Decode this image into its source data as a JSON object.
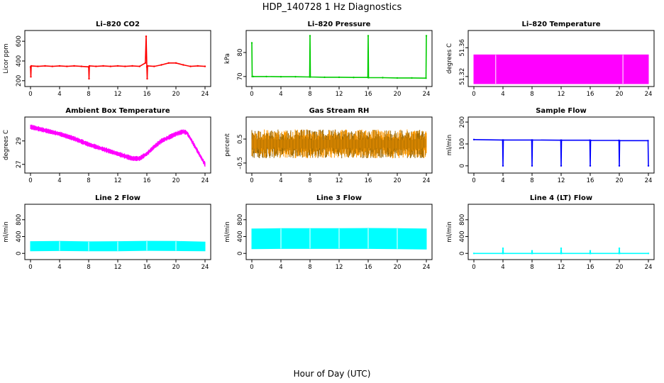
{
  "title": "HDP_140728  1 Hz Diagnostics",
  "xlabel": "Hour of Day (UTC)",
  "chart_data": [
    {
      "type": "line",
      "title": "Li–820 CO2",
      "ylabel": "Licor ppm",
      "color": "#ff0000",
      "xlim": [
        0,
        24
      ],
      "xticks": [
        0,
        4,
        8,
        12,
        16,
        20,
        24
      ],
      "ylim": [
        170,
        680
      ],
      "yticks": [
        200,
        400,
        600
      ],
      "series": [
        {
          "x": [
            0,
            0.05,
            0.1,
            1,
            2,
            3,
            4,
            5,
            6,
            7,
            8,
            8.05,
            8.1,
            9,
            10,
            11,
            12,
            13,
            14,
            15,
            15.8,
            15.9,
            16,
            16.05,
            16.1,
            17,
            18,
            19,
            20,
            21,
            22,
            23,
            24
          ],
          "y": [
            340,
            240,
            350,
            345,
            350,
            345,
            350,
            345,
            350,
            345,
            340,
            220,
            350,
            345,
            350,
            345,
            350,
            345,
            350,
            345,
            380,
            650,
            340,
            220,
            350,
            345,
            360,
            380,
            380,
            360,
            345,
            350,
            345
          ]
        }
      ]
    },
    {
      "type": "line",
      "title": "Li–820 Pressure",
      "ylabel": "kPa",
      "color": "#00cc00",
      "xlim": [
        0,
        24
      ],
      "xticks": [
        0,
        4,
        8,
        12,
        16,
        20,
        24
      ],
      "ylim": [
        67,
        88
      ],
      "yticks": [
        70,
        80
      ],
      "series": [
        {
          "x": [
            0,
            0.05,
            0.2,
            2,
            4,
            6,
            7.95,
            8,
            8.05,
            10,
            12,
            14,
            15.95,
            16,
            16.05,
            18,
            20,
            22,
            23.95,
            24
          ],
          "y": [
            84,
            70,
            70,
            70,
            69.9,
            69.9,
            69.8,
            87,
            69.8,
            69.7,
            69.7,
            69.6,
            69.6,
            87,
            69.5,
            69.5,
            69.4,
            69.4,
            69.3,
            87
          ]
        }
      ]
    },
    {
      "type": "area",
      "title": "Li–820 Temperature",
      "ylabel": "degrees C",
      "color": "#ff00ff",
      "xlim": [
        0,
        24
      ],
      "xticks": [
        0,
        4,
        8,
        12,
        16,
        20,
        24
      ],
      "ylim": [
        51.31,
        51.38
      ],
      "yticks": [
        51.32,
        51.36
      ],
      "series": [
        {
          "name": "",
          "x": [
            0,
            3,
            20.5,
            24
          ],
          "y": [
            51.35,
            51.35,
            51.35,
            51.35
          ],
          "y_low": [
            51.31,
            51.31,
            51.31,
            51.31
          ]
        }
      ]
    },
    {
      "type": "line",
      "title": "Ambient Box Temperature",
      "ylabel": "degrees C",
      "color": "#ff00ff",
      "xlim": [
        0,
        24
      ],
      "xticks": [
        0,
        4,
        8,
        12,
        16,
        20,
        24
      ],
      "ylim": [
        26.5,
        30.8
      ],
      "yticks": [
        27,
        29
      ],
      "band": 0.45,
      "series": [
        {
          "x": [
            0,
            2,
            4,
            6,
            8,
            10,
            12,
            14,
            15,
            16,
            17,
            18,
            20,
            21,
            21.5,
            22,
            23,
            24
          ],
          "y": [
            30.2,
            29.9,
            29.6,
            29.2,
            28.7,
            28.3,
            27.9,
            27.5,
            27.5,
            27.9,
            28.5,
            29.0,
            29.6,
            29.8,
            29.7,
            29.2,
            28.1,
            27.0
          ]
        }
      ]
    },
    {
      "type": "scatter",
      "title": "Gas Stream RH",
      "ylabel": "percent",
      "color": "#ff9900",
      "color2": "#996600",
      "xlim": [
        0,
        24
      ],
      "xticks": [
        0,
        4,
        8,
        12,
        16,
        20,
        24
      ],
      "ylim": [
        -0.8,
        1.3
      ],
      "yticks": [
        -0.5,
        0.5
      ],
      "yticklabels": [
        "–0.5",
        "0.5"
      ],
      "range": [
        -0.45,
        1.05
      ]
    },
    {
      "type": "line",
      "title": "Sample Flow",
      "ylabel": "ml/min",
      "color": "#0000ff",
      "xlim": [
        0,
        24
      ],
      "xticks": [
        0,
        4,
        8,
        12,
        16,
        20,
        24
      ],
      "ylim": [
        -20,
        210
      ],
      "yticks": [
        0,
        100,
        200
      ],
      "series": [
        {
          "x": [
            0,
            3.95,
            4,
            4.05,
            7.95,
            8,
            8.05,
            11.95,
            12,
            12.05,
            15.95,
            16,
            16.05,
            19.95,
            20,
            20.05,
            23.95,
            24
          ],
          "y": [
            120,
            118,
            0,
            118,
            118,
            0,
            118,
            117,
            0,
            117,
            117,
            0,
            116,
            116,
            0,
            115,
            115,
            0
          ]
        }
      ]
    },
    {
      "type": "area",
      "title": "Line 2 Flow",
      "ylabel": "ml/min",
      "color": "#00ffff",
      "xlim": [
        0,
        24
      ],
      "xticks": [
        0,
        4,
        8,
        12,
        16,
        20,
        24
      ],
      "ylim": [
        -80,
        1100
      ],
      "yticks": [
        0,
        400,
        800
      ],
      "series": [
        {
          "x": [
            0,
            4,
            8,
            12,
            16,
            20,
            24
          ],
          "y": [
            280,
            285,
            275,
            280,
            290,
            285,
            270
          ],
          "y_low": [
            60,
            65,
            60,
            60,
            70,
            65,
            60
          ]
        }
      ]
    },
    {
      "type": "area",
      "title": "Line 3 Flow",
      "ylabel": "ml/min",
      "color": "#00ffff",
      "xlim": [
        0,
        24
      ],
      "xticks": [
        0,
        4,
        8,
        12,
        16,
        20,
        24
      ],
      "ylim": [
        -80,
        1100
      ],
      "yticks": [
        0,
        400,
        800
      ],
      "series": [
        {
          "x": [
            0,
            4,
            8,
            12,
            16,
            20,
            24
          ],
          "y": [
            580,
            590,
            590,
            590,
            595,
            590,
            580
          ],
          "y_low": [
            110,
            115,
            115,
            115,
            115,
            110,
            100
          ]
        }
      ]
    },
    {
      "type": "line",
      "title": "Line 4 (LT) Flow",
      "ylabel": "ml/min",
      "color": "#00ffff",
      "xlim": [
        0,
        24
      ],
      "xticks": [
        0,
        4,
        8,
        12,
        16,
        20,
        24
      ],
      "ylim": [
        -80,
        1100
      ],
      "yticks": [
        0,
        400,
        800
      ],
      "series": [
        {
          "x": [
            0,
            3.95,
            4,
            4.05,
            7.95,
            8,
            8.05,
            11.95,
            12,
            12.05,
            15.95,
            16,
            16.05,
            19.95,
            20,
            20.05,
            24
          ],
          "y": [
            0,
            0,
            120,
            0,
            0,
            60,
            0,
            0,
            120,
            0,
            0,
            60,
            0,
            0,
            120,
            0,
            0
          ]
        }
      ]
    }
  ]
}
